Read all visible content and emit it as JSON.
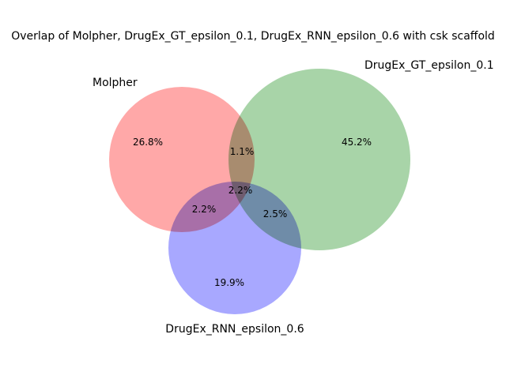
{
  "chart_data": {
    "type": "venn",
    "title": "Overlap of Molpher, DrugEx_GT_epsilon_0.1, DrugEx_RNN_epsilon_0.6 with csk scaffold",
    "sets": [
      {
        "name": "Molpher",
        "color": "#ff9999"
      },
      {
        "name": "DrugEx_GT_epsilon_0.1",
        "color": "#99cc99"
      },
      {
        "name": "DrugEx_RNN_epsilon_0.6",
        "color": "#9999ff"
      }
    ],
    "regions": [
      {
        "sets": [
          "Molpher"
        ],
        "label": "26.8%",
        "value": 26.8
      },
      {
        "sets": [
          "DrugEx_GT_epsilon_0.1"
        ],
        "label": "45.2%",
        "value": 45.2
      },
      {
        "sets": [
          "DrugEx_RNN_epsilon_0.6"
        ],
        "label": "19.9%",
        "value": 19.9
      },
      {
        "sets": [
          "Molpher",
          "DrugEx_GT_epsilon_0.1"
        ],
        "label": "1.1%",
        "value": 1.1
      },
      {
        "sets": [
          "Molpher",
          "DrugEx_RNN_epsilon_0.6"
        ],
        "label": "2.2%",
        "value": 2.2
      },
      {
        "sets": [
          "DrugEx_GT_epsilon_0.1",
          "DrugEx_RNN_epsilon_0.6"
        ],
        "label": "2.5%",
        "value": 2.5
      },
      {
        "sets": [
          "Molpher",
          "DrugEx_GT_epsilon_0.1",
          "DrugEx_RNN_epsilon_0.6"
        ],
        "label": "2.2%",
        "value": 2.2
      }
    ]
  }
}
